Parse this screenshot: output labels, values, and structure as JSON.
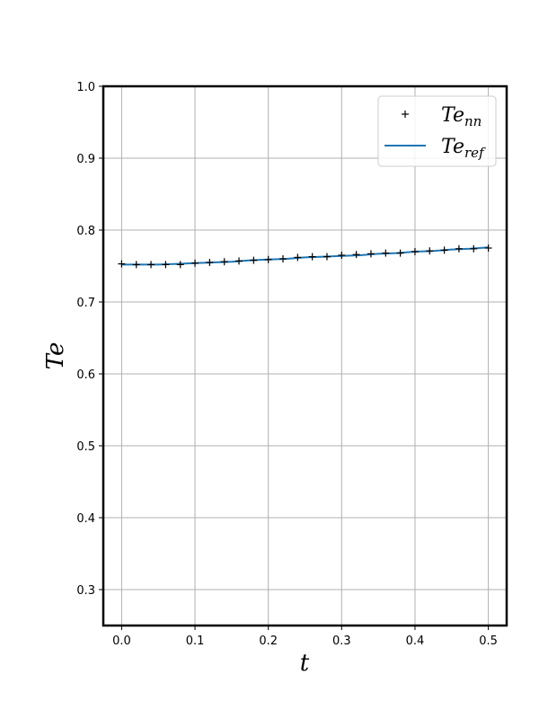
{
  "chart_data": {
    "type": "line",
    "xlabel": "t",
    "ylabel": "Te",
    "xlim": [
      -0.025,
      0.525
    ],
    "ylim": [
      0.25,
      1.0
    ],
    "xticks": [
      "0.0",
      "0.1",
      "0.2",
      "0.3",
      "0.4",
      "0.5"
    ],
    "yticks": [
      "0.3",
      "0.4",
      "0.5",
      "0.6",
      "0.7",
      "0.8",
      "0.9",
      "1.0"
    ],
    "grid": true,
    "legend": {
      "placement": "top-right",
      "entries": [
        {
          "base": "Te",
          "sub": "nn"
        },
        {
          "base": "Te",
          "sub": "ref"
        }
      ]
    },
    "colors": {
      "ref": "#1f77b4",
      "nn": "#000000",
      "grid": "#b0b0b0"
    },
    "series": [
      {
        "name": "Te_nn",
        "style": "markers-plus",
        "x": [
          0.0,
          0.02,
          0.04,
          0.06,
          0.08,
          0.1,
          0.12,
          0.14,
          0.16,
          0.18,
          0.2,
          0.22,
          0.24,
          0.26,
          0.28,
          0.3,
          0.32,
          0.34,
          0.36,
          0.38,
          0.4,
          0.42,
          0.44,
          0.46,
          0.48,
          0.5
        ],
        "y": [
          0.753,
          0.752,
          0.752,
          0.752,
          0.752,
          0.754,
          0.755,
          0.756,
          0.757,
          0.758,
          0.759,
          0.76,
          0.762,
          0.763,
          0.763,
          0.765,
          0.766,
          0.767,
          0.768,
          0.768,
          0.77,
          0.771,
          0.772,
          0.774,
          0.774,
          0.775
        ]
      },
      {
        "name": "Te_ref",
        "style": "line",
        "x": [
          0.0,
          0.025,
          0.05,
          0.075,
          0.1,
          0.125,
          0.15,
          0.175,
          0.2,
          0.225,
          0.25,
          0.275,
          0.3,
          0.325,
          0.35,
          0.375,
          0.4,
          0.425,
          0.45,
          0.475,
          0.5
        ],
        "y": [
          0.752,
          0.752,
          0.752,
          0.753,
          0.754,
          0.755,
          0.756,
          0.758,
          0.759,
          0.76,
          0.762,
          0.763,
          0.764,
          0.765,
          0.767,
          0.768,
          0.77,
          0.771,
          0.773,
          0.774,
          0.776
        ]
      }
    ]
  }
}
